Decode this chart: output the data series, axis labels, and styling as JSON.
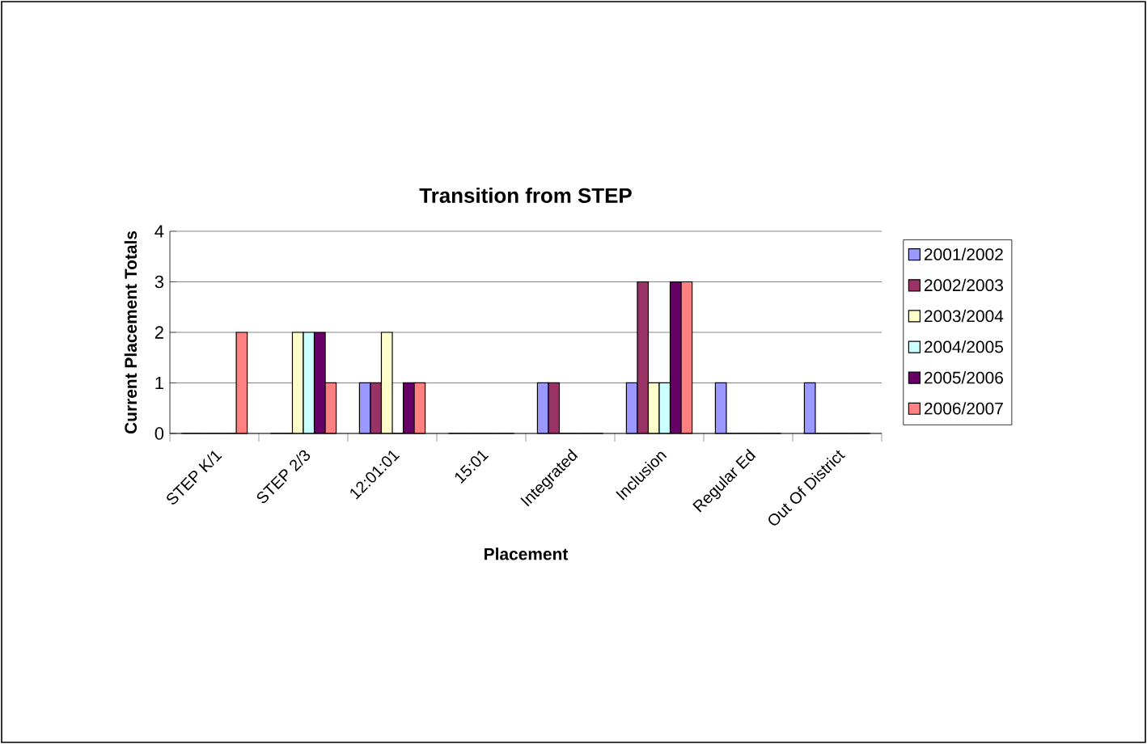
{
  "chart_data": {
    "type": "bar",
    "title": "Transition from STEP",
    "xlabel": "Placement",
    "ylabel": "Current Placement Totals",
    "categories": [
      "STEP K/1",
      "STEP 2/3",
      "12:01:01",
      "15:01",
      "Integrated",
      "Inclusion",
      "Regular Ed",
      "Out Of District"
    ],
    "series": [
      {
        "name": "2001/2002",
        "color": "#9999ff",
        "values": [
          0,
          0,
          1,
          0,
          1,
          1,
          1,
          1
        ]
      },
      {
        "name": "2002/2003",
        "color": "#993366",
        "values": [
          0,
          0,
          1,
          0,
          1,
          3,
          0,
          0
        ]
      },
      {
        "name": "2003/2004",
        "color": "#ffffcc",
        "values": [
          0,
          2,
          2,
          0,
          0,
          1,
          0,
          0
        ]
      },
      {
        "name": "2004/2005",
        "color": "#ccffff",
        "values": [
          0,
          2,
          0,
          0,
          0,
          1,
          0,
          0
        ]
      },
      {
        "name": "2005/2006",
        "color": "#660066",
        "values": [
          0,
          2,
          1,
          0,
          0,
          3,
          0,
          0
        ]
      },
      {
        "name": "2006/2007",
        "color": "#ff8080",
        "values": [
          2,
          1,
          1,
          0,
          0,
          3,
          0,
          0
        ]
      }
    ],
    "ylim": [
      0,
      4
    ],
    "yticks": [
      0,
      1,
      2,
      3,
      4
    ],
    "grid": "y",
    "legend": "right"
  }
}
